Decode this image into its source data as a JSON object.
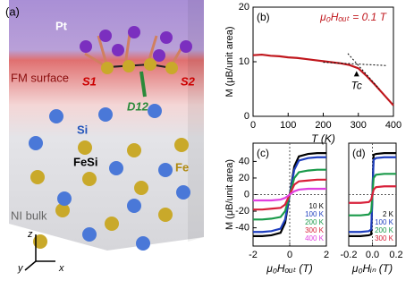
{
  "diagram": {
    "panel_label": "(a)",
    "labels": {
      "pt": "Pt",
      "fm": "FM surface",
      "s1": "S1",
      "s2": "S2",
      "d12": "D12",
      "si": "Si",
      "fesi": "FeSi",
      "fe": "Fe",
      "bulk": "NI bulk",
      "z": "z",
      "y": "y",
      "x": "x"
    }
  },
  "chart_data": [
    {
      "type": "line",
      "panel_label": "(b)",
      "annotation": "μ₀Hₒᵤₜ = 0.1 T",
      "marker_label": "Tc",
      "xlabel": "T (K)",
      "ylabel": "M (μB/unit area)",
      "xlim": [
        0,
        400
      ],
      "xticks": [
        0,
        100,
        200,
        300,
        400
      ],
      "ylim": [
        0,
        20
      ],
      "yticks": [
        0,
        10,
        20
      ],
      "x": [
        0,
        25,
        50,
        75,
        100,
        125,
        150,
        175,
        200,
        225,
        250,
        275,
        300,
        325,
        350,
        375,
        400
      ],
      "series": [
        {
          "color": "#c0171d",
          "values": [
            11.2,
            11.3,
            11.1,
            11.0,
            10.8,
            10.7,
            10.5,
            10.3,
            10.1,
            9.9,
            9.7,
            9.4,
            8.8,
            7.3,
            5.6,
            3.8,
            2.0
          ]
        }
      ]
    },
    {
      "type": "line",
      "panel_label": "(c)",
      "xlabel": "μ₀Hₒᵤₜ (T)",
      "ylabel": "M (μB/unit area)",
      "xlim": [
        -2,
        2
      ],
      "xticks": [
        -2,
        0,
        2
      ],
      "ylim": [
        -62,
        62
      ],
      "yticks": [
        -40,
        -20,
        0,
        20,
        40
      ],
      "x": [
        -2,
        -1.5,
        -1,
        -0.5,
        -0.25,
        0,
        0.25,
        0.5,
        1,
        1.5,
        2
      ],
      "series": [
        {
          "name": "10 K",
          "color": "#000000",
          "values": [
            -50,
            -50,
            -49,
            -46,
            -34,
            0,
            34,
            46,
            49,
            50,
            50
          ]
        },
        {
          "name": "100 K",
          "color": "#1f3fbf",
          "values": [
            -45,
            -45,
            -44,
            -41,
            -30,
            0,
            30,
            41,
            44,
            45,
            45
          ]
        },
        {
          "name": "200 K",
          "color": "#1a9a4a",
          "values": [
            -30,
            -30,
            -29,
            -27,
            -20,
            0,
            20,
            27,
            29,
            30,
            30
          ]
        },
        {
          "name": "300 K",
          "color": "#d8203a",
          "values": [
            -18,
            -18,
            -17,
            -16,
            -12,
            0,
            12,
            16,
            17,
            18,
            18
          ]
        },
        {
          "name": "400 K",
          "color": "#e040e0",
          "values": [
            -7,
            -7,
            -7,
            -6,
            -4,
            0,
            4,
            6,
            7,
            7,
            7
          ]
        }
      ]
    },
    {
      "type": "line",
      "panel_label": "(d)",
      "xlabel": "μ₀Hᵢₙ (T)",
      "xlim": [
        -0.2,
        0.2
      ],
      "xticks": [
        -0.2,
        {
          "value": 0,
          "label": "0.0"
        },
        0.2
      ],
      "ylim": [
        -62,
        62
      ],
      "x": [
        -0.2,
        -0.1,
        -0.03,
        -0.01,
        0,
        0.01,
        0.03,
        0.1,
        0.2
      ],
      "series": [
        {
          "name": "2 K",
          "color": "#000000",
          "values": [
            -50,
            -50,
            -49,
            -48,
            0,
            48,
            49,
            50,
            50
          ]
        },
        {
          "name": "100 K",
          "color": "#1f3fbf",
          "values": [
            -45,
            -45,
            -44,
            -42,
            0,
            42,
            44,
            45,
            45
          ]
        },
        {
          "name": "200 K",
          "color": "#1a9a4a",
          "values": [
            -25,
            -25,
            -24,
            -20,
            0,
            20,
            24,
            25,
            25
          ]
        },
        {
          "name": "300 K",
          "color": "#d8203a",
          "values": [
            -10,
            -10,
            -9,
            -6,
            0,
            6,
            9,
            10,
            10
          ]
        }
      ]
    }
  ]
}
